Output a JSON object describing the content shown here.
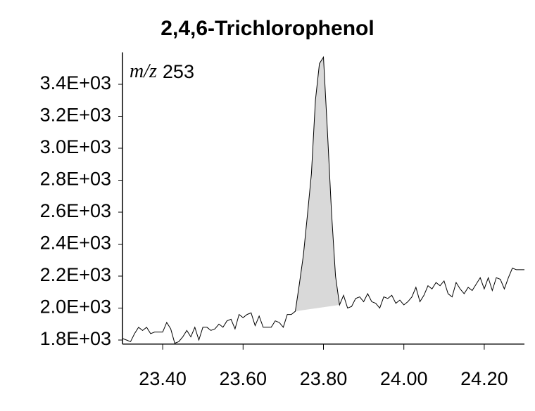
{
  "chart_data": {
    "type": "line",
    "title": "2,4,6-Trichlorophenol",
    "annotation_label": "m/z",
    "annotation_value": "253",
    "color": "#000000",
    "fill": {
      "x": [
        23.73,
        23.84
      ],
      "color": "#d9d9d9"
    },
    "x": [
      23.3,
      23.31,
      23.32,
      23.33,
      23.34,
      23.35,
      23.36,
      23.37,
      23.38,
      23.39,
      23.4,
      23.41,
      23.42,
      23.43,
      23.44,
      23.45,
      23.46,
      23.47,
      23.48,
      23.49,
      23.5,
      23.51,
      23.52,
      23.53,
      23.54,
      23.55,
      23.56,
      23.57,
      23.58,
      23.59,
      23.6,
      23.61,
      23.62,
      23.63,
      23.64,
      23.65,
      23.66,
      23.67,
      23.68,
      23.69,
      23.7,
      23.71,
      23.72,
      23.73,
      23.74,
      23.75,
      23.76,
      23.77,
      23.78,
      23.79,
      23.8,
      23.81,
      23.82,
      23.83,
      23.84,
      23.85,
      23.86,
      23.87,
      23.88,
      23.89,
      23.9,
      23.91,
      23.92,
      23.93,
      23.94,
      23.95,
      23.96,
      23.97,
      23.98,
      23.99,
      24.0,
      24.01,
      24.02,
      24.03,
      24.04,
      24.05,
      24.06,
      24.07,
      24.08,
      24.09,
      24.1,
      24.11,
      24.12,
      24.13,
      24.14,
      24.15,
      24.16,
      24.17,
      24.18,
      24.19,
      24.2,
      24.21,
      24.22,
      24.23,
      24.24,
      24.25,
      24.26,
      24.27,
      24.28,
      24.29,
      24.3
    ],
    "values": [
      1810,
      1800,
      1790,
      1840,
      1880,
      1860,
      1880,
      1840,
      1850,
      1850,
      1850,
      1910,
      1870,
      1780,
      1790,
      1820,
      1860,
      1820,
      1880,
      1800,
      1880,
      1880,
      1860,
      1870,
      1900,
      1880,
      1920,
      1930,
      1870,
      1960,
      1940,
      1960,
      1970,
      1890,
      1950,
      1880,
      1880,
      1880,
      1920,
      1910,
      1880,
      1960,
      1960,
      1980,
      2150,
      2330,
      2580,
      2840,
      3300,
      3530,
      3570,
      3100,
      2600,
      2200,
      2020,
      2080,
      2000,
      2010,
      2060,
      2070,
      2040,
      2090,
      2040,
      2030,
      2000,
      2070,
      2060,
      2080,
      2030,
      2050,
      2020,
      2040,
      2070,
      2130,
      2040,
      2080,
      2140,
      2120,
      2160,
      2140,
      2170,
      2090,
      2070,
      2160,
      2120,
      2090,
      2130,
      2110,
      2150,
      2190,
      2120,
      2190,
      2110,
      2190,
      2180,
      2120,
      2190,
      2250,
      2240,
      2240,
      2240
    ],
    "xlim": [
      23.3,
      24.3
    ],
    "xticks": [
      {
        "value": 23.4,
        "label": "23.40"
      },
      {
        "value": 23.6,
        "label": "23.60"
      },
      {
        "value": 23.8,
        "label": "23.80"
      },
      {
        "value": 24.0,
        "label": "24.00"
      },
      {
        "value": 24.2,
        "label": "24.20"
      }
    ],
    "ylim": [
      1775,
      3600
    ],
    "yticks": [
      {
        "value": 1800,
        "label": "1.8E+03"
      },
      {
        "value": 2000,
        "label": "2.0E+03"
      },
      {
        "value": 2200,
        "label": "2.2E+03"
      },
      {
        "value": 2400,
        "label": "2.4E+03"
      },
      {
        "value": 2600,
        "label": "2.6E+03"
      },
      {
        "value": 2800,
        "label": "2.8E+03"
      },
      {
        "value": 3000,
        "label": "3.0E+03"
      },
      {
        "value": 3200,
        "label": "3.2E+03"
      },
      {
        "value": 3400,
        "label": "3.4E+03"
      }
    ]
  }
}
